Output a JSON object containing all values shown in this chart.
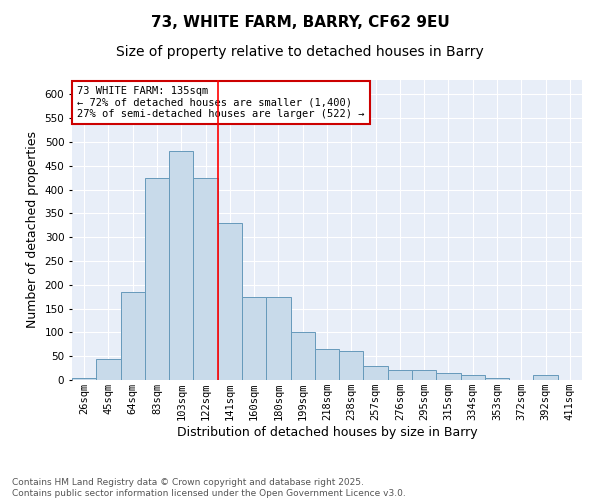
{
  "title_line1": "73, WHITE FARM, BARRY, CF62 9EU",
  "title_line2": "Size of property relative to detached houses in Barry",
  "xlabel": "Distribution of detached houses by size in Barry",
  "ylabel": "Number of detached properties",
  "categories": [
    "26sqm",
    "45sqm",
    "64sqm",
    "83sqm",
    "103sqm",
    "122sqm",
    "141sqm",
    "160sqm",
    "180sqm",
    "199sqm",
    "218sqm",
    "238sqm",
    "257sqm",
    "276sqm",
    "295sqm",
    "315sqm",
    "334sqm",
    "353sqm",
    "372sqm",
    "392sqm",
    "411sqm"
  ],
  "values": [
    5,
    45,
    185,
    425,
    480,
    425,
    330,
    175,
    175,
    100,
    65,
    60,
    30,
    20,
    20,
    15,
    10,
    5,
    1,
    10,
    1
  ],
  "bar_color": "#c8daea",
  "bar_edge_color": "#6699bb",
  "red_line_index": 6,
  "annotation_text": "73 WHITE FARM: 135sqm\n← 72% of detached houses are smaller (1,400)\n27% of semi-detached houses are larger (522) →",
  "annotation_box_color": "#ffffff",
  "annotation_box_edge_color": "#cc0000",
  "ylim": [
    0,
    630
  ],
  "yticks": [
    0,
    50,
    100,
    150,
    200,
    250,
    300,
    350,
    400,
    450,
    500,
    550,
    600
  ],
  "background_color": "#e8eef8",
  "grid_color": "#ffffff",
  "footer_text": "Contains HM Land Registry data © Crown copyright and database right 2025.\nContains public sector information licensed under the Open Government Licence v3.0.",
  "title_fontsize": 11,
  "subtitle_fontsize": 10,
  "axis_label_fontsize": 9,
  "tick_fontsize": 7.5,
  "annotation_fontsize": 7.5,
  "footer_fontsize": 6.5
}
